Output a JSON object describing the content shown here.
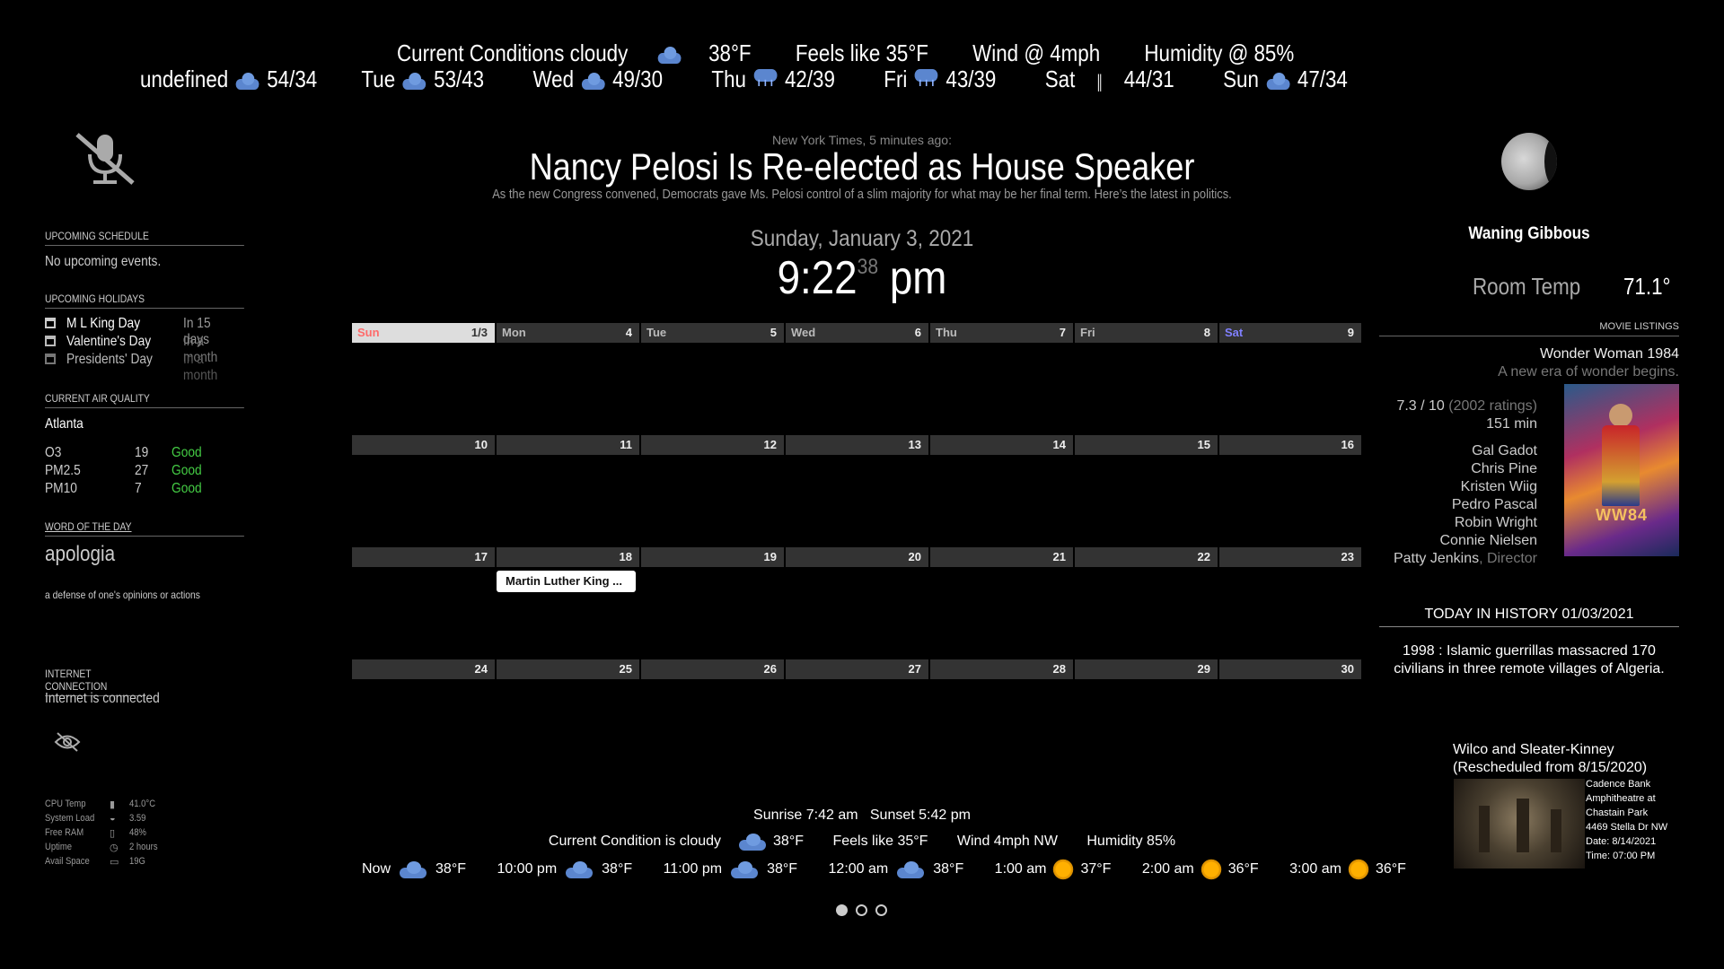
{
  "weather": {
    "current": {
      "conditions": "Current Conditions cloudy",
      "temp": "38°F",
      "feels_like": "Feels like 35°F",
      "wind": "Wind @ 4mph",
      "humidity": "Humidity @ 85%"
    },
    "forecast": [
      {
        "day": "undefined",
        "icon": "cloud-icon",
        "temps": "54/34"
      },
      {
        "day": "Tue",
        "icon": "cloud-icon",
        "temps": "53/43"
      },
      {
        "day": "Wed",
        "icon": "cloud-icon",
        "temps": "49/30"
      },
      {
        "day": "Thu",
        "icon": "rain-cloud-icon",
        "temps": "42/39"
      },
      {
        "day": "Fri",
        "icon": "rain-cloud-icon",
        "temps": "43/39"
      },
      {
        "day": "Sat",
        "icon": "wind-icon",
        "temps": "44/31"
      },
      {
        "day": "Sun",
        "icon": "cloud-icon",
        "temps": "47/34"
      }
    ]
  },
  "news": {
    "source": "New York Times, 5 minutes ago:",
    "headline": "Nancy Pelosi Is Re-elected as House Speaker",
    "summary": "As the new Congress convened, Democrats gave Ms. Pelosi control of a slim majority for what may be her final term. Here’s the latest in politics."
  },
  "clock": {
    "date": "Sunday, January 3, 2021",
    "time": "9:22",
    "seconds": "38",
    "ampm": "pm"
  },
  "schedule": {
    "title": "UPCOMING SCHEDULE",
    "empty": "No upcoming events."
  },
  "holidays": {
    "title": "UPCOMING HOLIDAYS",
    "items": [
      {
        "name": "M L King Day",
        "when": "In 15 days"
      },
      {
        "name": "Valentine's Day",
        "when": "In a month"
      },
      {
        "name": "Presidents' Day",
        "when": "In a month"
      }
    ]
  },
  "air_quality": {
    "title": "CURRENT AIR QUALITY",
    "city": "Atlanta",
    "rows": [
      {
        "name": "O3",
        "value": "19",
        "status": "Good"
      },
      {
        "name": "PM2.5",
        "value": "27",
        "status": "Good"
      },
      {
        "name": "PM10",
        "value": "7",
        "status": "Good"
      }
    ],
    "good_color": "#44cc44"
  },
  "word": {
    "title": "WORD OF THE DAY",
    "word": "apologia",
    "definition": "a defense of one's opinions or actions"
  },
  "internet": {
    "title": "INTERNET CONNECTION",
    "status": "Internet is connected"
  },
  "system": [
    {
      "label": "CPU Temp",
      "icon": "thermometer-icon",
      "value": "41.0°C"
    },
    {
      "label": "System Load",
      "icon": "gauge-icon",
      "value": "3.59"
    },
    {
      "label": "Free RAM",
      "icon": "memory-icon",
      "value": "48%"
    },
    {
      "label": "Uptime",
      "icon": "clock-icon",
      "value": "2 hours"
    },
    {
      "label": "Avail Space",
      "icon": "disk-icon",
      "value": "19G"
    }
  ],
  "calendar": {
    "days": [
      "Sun",
      "Mon",
      "Tue",
      "Wed",
      "Thu",
      "Fri",
      "Sat"
    ],
    "weeks": [
      [
        "1/3",
        "4",
        "5",
        "6",
        "7",
        "8",
        "9"
      ],
      [
        "10",
        "11",
        "12",
        "13",
        "14",
        "15",
        "16"
      ],
      [
        "17",
        "18",
        "19",
        "20",
        "21",
        "22",
        "23"
      ],
      [
        "24",
        "25",
        "26",
        "27",
        "28",
        "29",
        "30"
      ]
    ],
    "event": "Martin Luther King ..."
  },
  "sun": {
    "text": "Sunrise 7:42 am   Sunset 5:42 pm"
  },
  "current_line": {
    "condition": "Current Condition is cloudy",
    "temp": "38°F",
    "feels": "Feels like 35°F",
    "wind": "Wind 4mph NW",
    "humidity": "Humidity 85%"
  },
  "hourly": [
    {
      "time": "Now",
      "icon": "cloud-icon",
      "temp": "38°F"
    },
    {
      "time": "10:00 pm",
      "icon": "cloud-icon",
      "temp": "38°F"
    },
    {
      "time": "11:00 pm",
      "icon": "cloud-icon",
      "temp": "38°F"
    },
    {
      "time": "12:00 am",
      "icon": "cloud-icon",
      "temp": "38°F"
    },
    {
      "time": "1:00 am",
      "icon": "sun-icon",
      "temp": "37°F"
    },
    {
      "time": "2:00 am",
      "icon": "sun-icon",
      "temp": "36°F"
    },
    {
      "time": "3:00 am",
      "icon": "sun-icon",
      "temp": "36°F"
    }
  ],
  "moon": {
    "phase": "Waning Gibbous"
  },
  "room": {
    "label": "Room Temp",
    "value": "71.1°"
  },
  "movie": {
    "title_header": "MOVIE LISTINGS",
    "title": "Wonder Woman 1984",
    "tagline": "A new era of wonder begins.",
    "rating": "7.3 / 10",
    "ratings_count": "(2002 ratings)",
    "runtime": "151 min",
    "cast": [
      "Gal Gadot",
      "Chris Pine",
      "Kristen Wiig",
      "Pedro Pascal",
      "Robin Wright",
      "Connie Nielsen"
    ],
    "director": "Patty Jenkins",
    "director_label": ", Director",
    "poster_text": "WW84"
  },
  "history": {
    "title": "TODAY IN HISTORY 01/03/2021",
    "event": "1998 : Islamic guerrillas massacred 170 civilians in three remote villages of Algeria."
  },
  "concert": {
    "title": "Wilco and Sleater-Kinney",
    "subtitle": "(Rescheduled from 8/15/2020)",
    "venue": [
      "Cadence Bank",
      "Amphitheatre at",
      "Chastain Park",
      "4469 Stella Dr NW"
    ],
    "date": "Date: 8/14/2021",
    "time": "Time: 07:00 PM"
  }
}
